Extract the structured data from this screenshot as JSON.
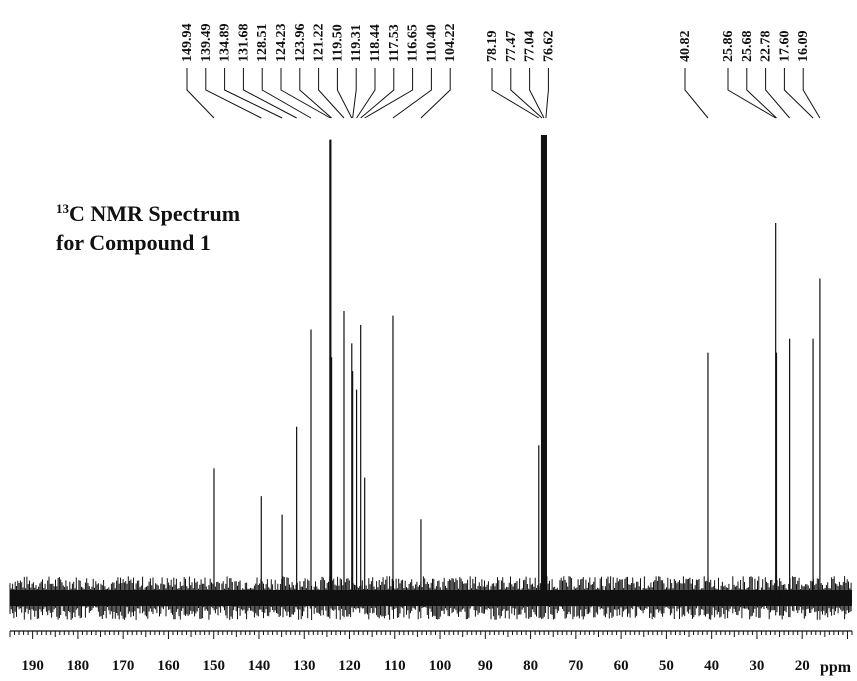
{
  "chart_data": {
    "type": "line",
    "title_sup": "13",
    "title_line1": "C NMR Spectrum",
    "title_line2": "for Compound 1",
    "xlabel": "ppm",
    "xlim": [
      195,
      9
    ],
    "reversed_x_axis": true,
    "x_ticks": [
      190,
      180,
      170,
      160,
      150,
      140,
      130,
      120,
      110,
      100,
      90,
      80,
      70,
      60,
      50,
      40,
      30,
      20
    ],
    "noise_band": true,
    "peak_label_groups": [
      [
        "149.94",
        "139.49",
        "134.89",
        "131.68",
        "128.51",
        "124.23",
        "123.96",
        "121.22",
        "119.50",
        "119.31",
        "118.44",
        "117.53",
        "116.65",
        "110.40",
        "104.22"
      ],
      [
        "78.19",
        "77.47",
        "77.04",
        "76.62"
      ],
      [
        "40.82"
      ],
      [
        "25.86",
        "25.68",
        "22.78",
        "17.60",
        "16.09"
      ]
    ],
    "peaks": [
      {
        "ppm": 149.94,
        "height": 0.28
      },
      {
        "ppm": 139.49,
        "height": 0.22
      },
      {
        "ppm": 134.89,
        "height": 0.18
      },
      {
        "ppm": 131.68,
        "height": 0.37
      },
      {
        "ppm": 128.51,
        "height": 0.58
      },
      {
        "ppm": 124.23,
        "height": 0.99
      },
      {
        "ppm": 123.96,
        "height": 0.52
      },
      {
        "ppm": 121.22,
        "height": 0.62
      },
      {
        "ppm": 119.5,
        "height": 0.55
      },
      {
        "ppm": 119.31,
        "height": 0.49
      },
      {
        "ppm": 118.44,
        "height": 0.45
      },
      {
        "ppm": 117.53,
        "height": 0.59
      },
      {
        "ppm": 116.65,
        "height": 0.26
      },
      {
        "ppm": 110.4,
        "height": 0.61
      },
      {
        "ppm": 104.22,
        "height": 0.17
      },
      {
        "ppm": 78.19,
        "height": 0.33
      },
      {
        "ppm": 77.47,
        "height": 1.0
      },
      {
        "ppm": 77.04,
        "height": 1.0
      },
      {
        "ppm": 76.62,
        "height": 1.0
      },
      {
        "ppm": 40.82,
        "height": 0.53
      },
      {
        "ppm": 25.86,
        "height": 0.81
      },
      {
        "ppm": 25.68,
        "height": 0.53
      },
      {
        "ppm": 22.78,
        "height": 0.56
      },
      {
        "ppm": 17.6,
        "height": 0.56
      },
      {
        "ppm": 16.09,
        "height": 0.69
      }
    ],
    "colors": {
      "trace": "#111111",
      "text": "#111111",
      "background": "#ffffff"
    }
  }
}
